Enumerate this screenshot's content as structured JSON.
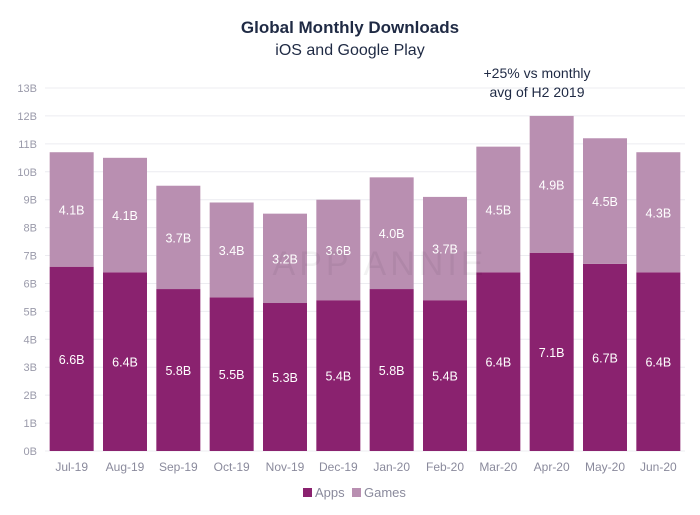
{
  "chart_data": {
    "type": "bar",
    "stacked": true,
    "title": "Global Monthly Downloads",
    "subtitle": "iOS and Google Play",
    "categories": [
      "Jul-19",
      "Aug-19",
      "Sep-19",
      "Oct-19",
      "Nov-19",
      "Dec-19",
      "Jan-20",
      "Feb-20",
      "Mar-20",
      "Apr-20",
      "May-20",
      "Jun-20"
    ],
    "series": [
      {
        "name": "Apps",
        "color": "#8a226f",
        "values": [
          6.6,
          6.4,
          5.8,
          5.5,
          5.3,
          5.4,
          5.8,
          5.4,
          6.4,
          7.1,
          6.7,
          6.4
        ],
        "labels": [
          "6.6B",
          "6.4B",
          "5.8B",
          "5.5B",
          "5.3B",
          "5.4B",
          "5.8B",
          "5.4B",
          "6.4B",
          "7.1B",
          "6.7B",
          "6.4B"
        ]
      },
      {
        "name": "Games",
        "color": "#b98fb1",
        "values": [
          4.1,
          4.1,
          3.7,
          3.4,
          3.2,
          3.6,
          4.0,
          3.7,
          4.5,
          4.9,
          4.5,
          4.3
        ],
        "labels": [
          "4.1B",
          "4.1B",
          "3.7B",
          "3.4B",
          "3.2B",
          "3.6B",
          "4.0B",
          "3.7B",
          "4.5B",
          "4.9B",
          "4.5B",
          "4.3B"
        ]
      }
    ],
    "yticks": [
      "0B",
      "1B",
      "2B",
      "3B",
      "4B",
      "5B",
      "6B",
      "7B",
      "8B",
      "9B",
      "10B",
      "11B",
      "12B",
      "13B"
    ],
    "ylim": [
      0,
      13
    ],
    "grid": true,
    "legend": "bottom-center",
    "annotation": {
      "lines": [
        "+25% vs monthly",
        "avg of H2 2019"
      ],
      "category": "Apr-20"
    },
    "watermark": "APP ANNIE"
  }
}
